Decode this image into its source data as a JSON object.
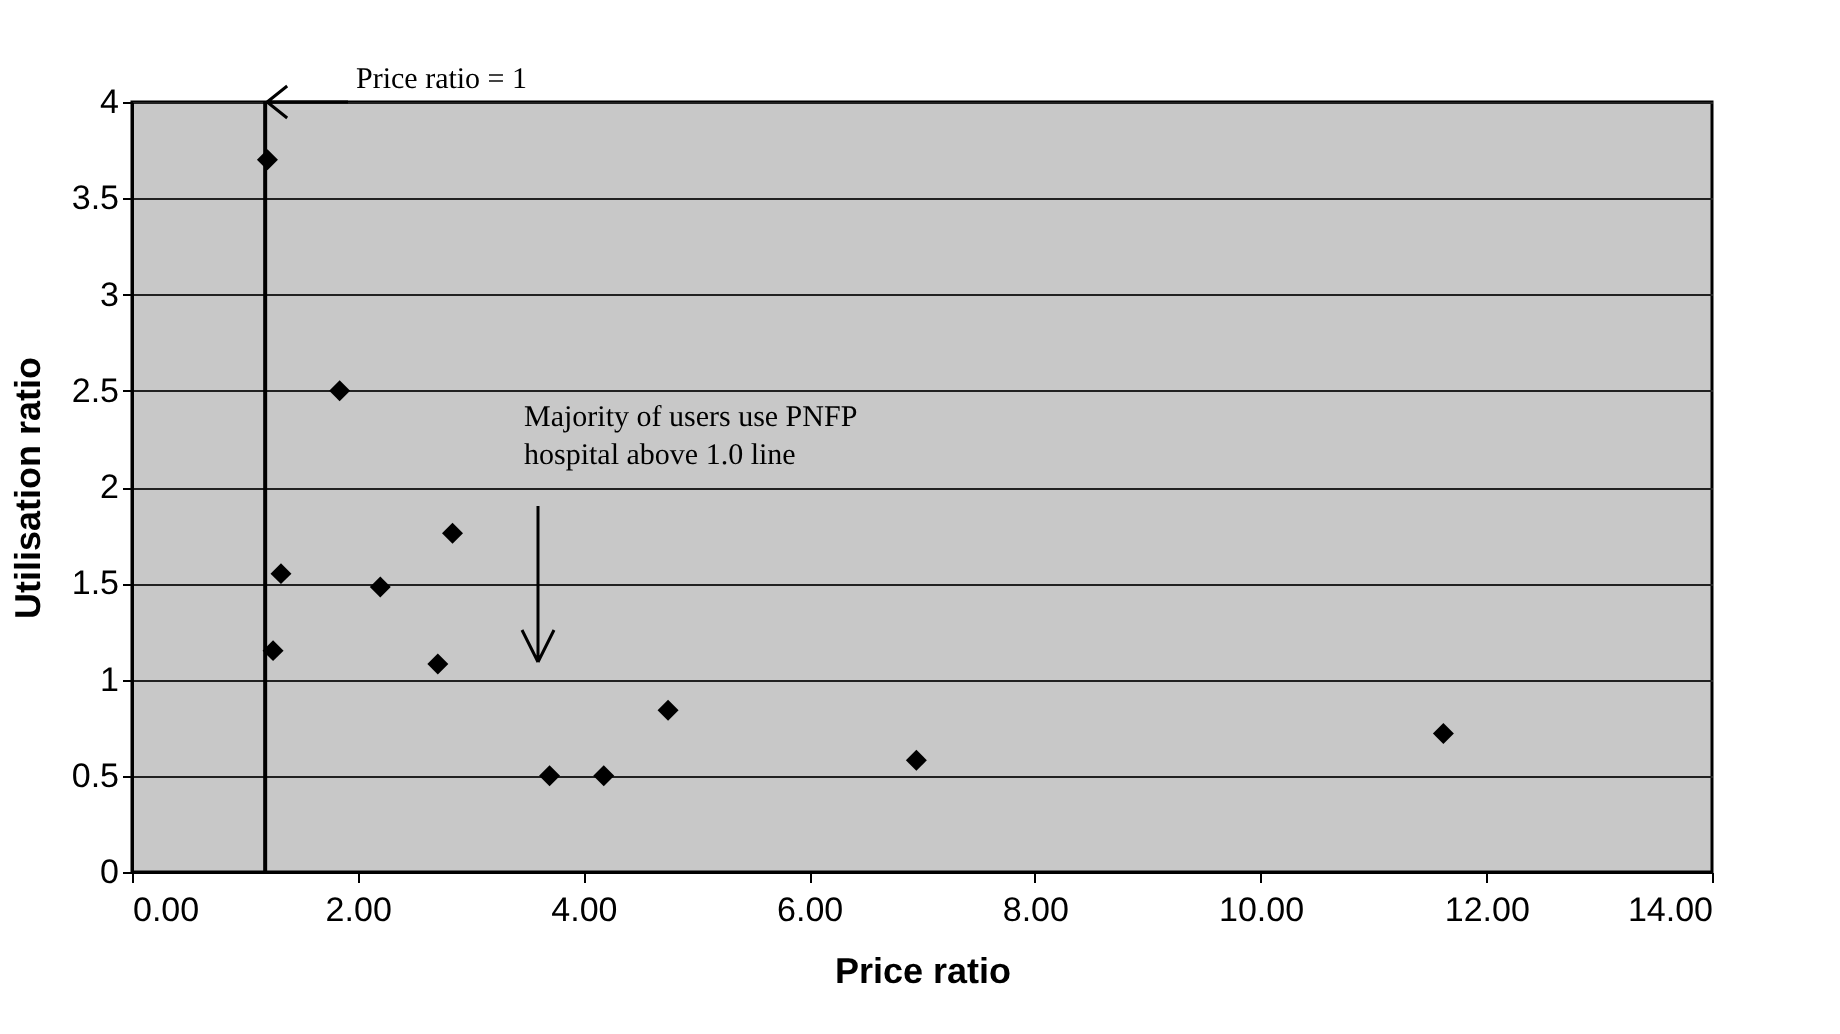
{
  "chart_data": {
    "type": "scatter",
    "xlabel": "Price ratio",
    "ylabel": "Utilisation ratio",
    "x": [
      1.2,
      1.84,
      1.32,
      1.25,
      2.2,
      2.71,
      2.84,
      3.7,
      4.18,
      4.75,
      6.95,
      11.62
    ],
    "values": [
      3.7,
      2.5,
      1.55,
      1.15,
      1.48,
      1.08,
      1.76,
      0.5,
      0.5,
      0.84,
      0.58,
      0.72
    ],
    "color": "#000000",
    "marker": "diamond",
    "grid": "y",
    "xlim": [
      0,
      14
    ],
    "xticks": [
      {
        "value": 0,
        "label": "0.00"
      },
      {
        "value": 2,
        "label": "2.00"
      },
      {
        "value": 4,
        "label": "4.00"
      },
      {
        "value": 6,
        "label": "6.00"
      },
      {
        "value": 8,
        "label": "8.00"
      },
      {
        "value": 10,
        "label": "10.00"
      },
      {
        "value": 12,
        "label": "12.00"
      },
      {
        "value": 14,
        "label": "14.00"
      }
    ],
    "ylim": [
      0,
      4
    ],
    "yticks": [
      0,
      0.5,
      1,
      1.5,
      2,
      2.5,
      3,
      3.5,
      4
    ],
    "ref_lines": [
      {
        "axis": "x",
        "value": 1.18,
        "color": "#000000"
      }
    ],
    "annotations": [
      "Price ratio = 1",
      "Majority of users use PNFP hospital above 1.0 line"
    ]
  }
}
